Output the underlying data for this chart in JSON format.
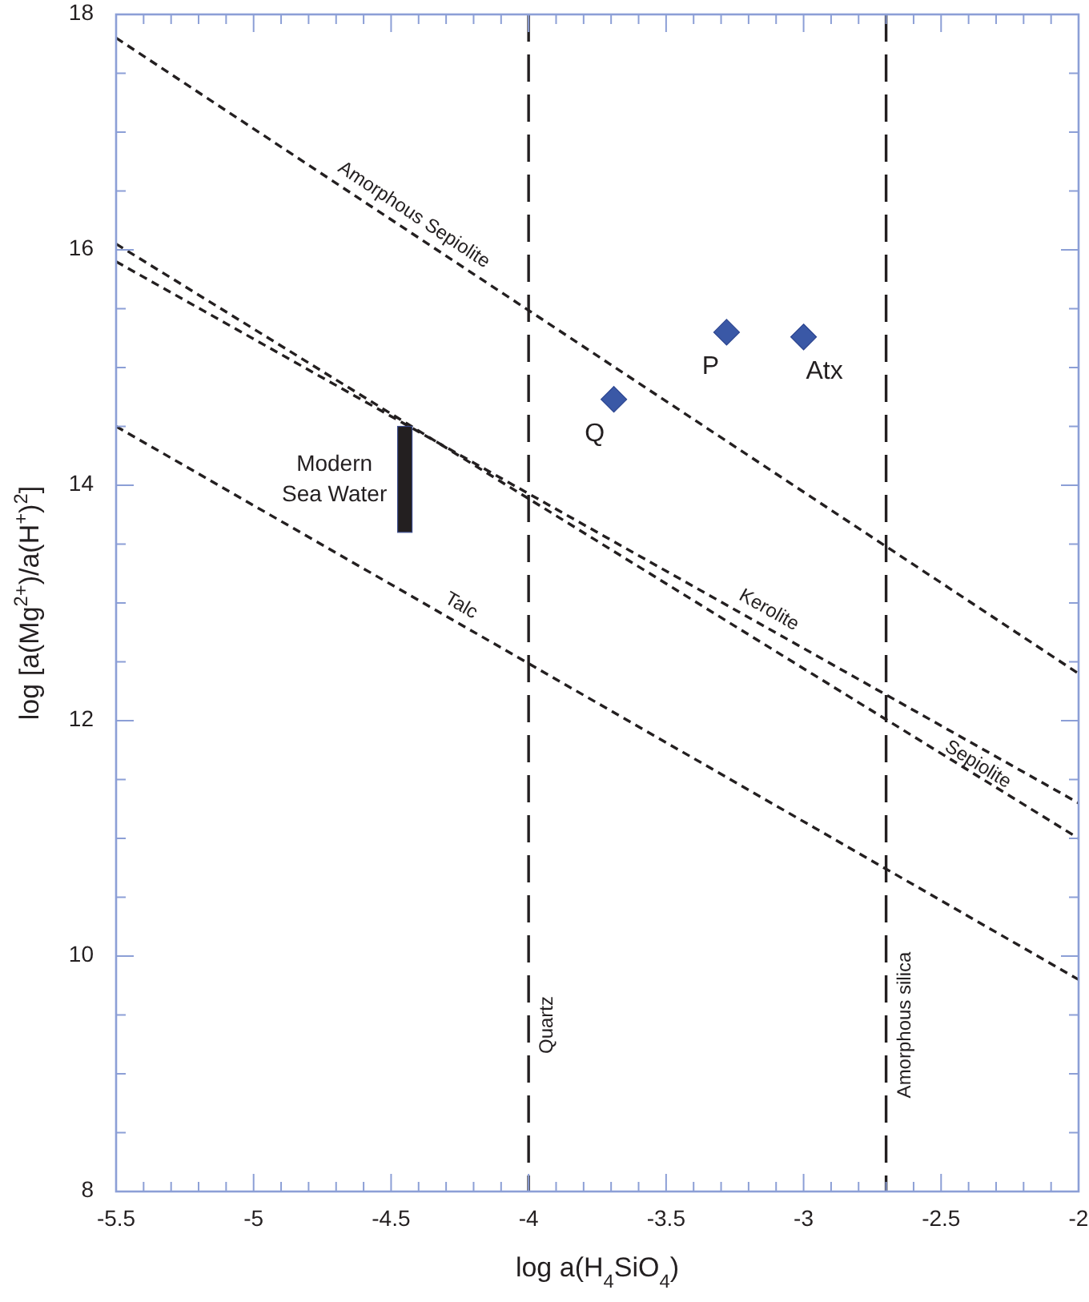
{
  "chart_data": {
    "type": "line",
    "xlabel": "log a(H$_{4}$SiO$_{4}$)",
    "ylabel": "log [a(Mg$^{2+}$)/a(H$^{+}$)$^{2}$]",
    "xlim": [
      -5.5,
      -2
    ],
    "ylim": [
      8,
      18
    ],
    "xticks": [
      -5.5,
      {
        "value": -5.4,
        "label": null
      },
      {
        "value": -5.3,
        "label": null
      },
      {
        "value": -5.2,
        "label": null
      },
      {
        "value": -5.1,
        "label": null
      },
      -5,
      {
        "value": -4.9,
        "label": null
      },
      {
        "value": -4.8,
        "label": null
      },
      {
        "value": -4.7,
        "label": null
      },
      {
        "value": -4.6,
        "label": null
      },
      -4.5,
      {
        "value": -4.4,
        "label": null
      },
      {
        "value": -4.3,
        "label": null
      },
      {
        "value": -4.2,
        "label": null
      },
      {
        "value": -4.1,
        "label": null
      },
      -4,
      {
        "value": -3.9,
        "label": null
      },
      {
        "value": -3.8,
        "label": null
      },
      {
        "value": -3.7,
        "label": null
      },
      {
        "value": -3.6,
        "label": null
      },
      -3.5,
      {
        "value": -3.4,
        "label": null
      },
      {
        "value": -3.3,
        "label": null
      },
      {
        "value": -3.2,
        "label": null
      },
      {
        "value": -3.1,
        "label": null
      },
      -3,
      {
        "value": -2.9,
        "label": null
      },
      {
        "value": -2.8,
        "label": null
      },
      {
        "value": -2.7,
        "label": null
      },
      {
        "value": -2.6,
        "label": null
      },
      -2.5,
      {
        "value": -2.4,
        "label": null
      },
      {
        "value": -2.3,
        "label": null
      },
      {
        "value": -2.2,
        "label": null
      },
      {
        "value": -2.1,
        "label": null
      },
      -2
    ],
    "yticks": [
      8,
      {
        "value": 8.5,
        "label": null
      },
      {
        "value": 9,
        "label": null
      },
      {
        "value": 9.5,
        "label": null
      },
      10,
      {
        "value": 10.5,
        "label": null
      },
      {
        "value": 11,
        "label": null
      },
      {
        "value": 11.5,
        "label": null
      },
      12,
      {
        "value": 12.5,
        "label": null
      },
      {
        "value": 13,
        "label": null
      },
      {
        "value": 13.5,
        "label": null
      },
      14,
      {
        "value": 14.5,
        "label": null
      },
      {
        "value": 15,
        "label": null
      },
      {
        "value": 15.5,
        "label": null
      },
      16,
      {
        "value": 16.5,
        "label": null
      },
      {
        "value": 17,
        "label": null
      },
      {
        "value": 17.5,
        "label": null
      },
      18
    ],
    "series": [
      {
        "name": "Amorphous Sepiolite",
        "color": "#231f20",
        "line_style": "dashed",
        "x": [
          -5.5,
          -2
        ],
        "values": [
          17.8,
          12.4
        ]
      },
      {
        "name": "Sepiolite",
        "color": "#231f20",
        "line_style": "dashed",
        "x": [
          -5.5,
          -2
        ],
        "values": [
          16.05,
          11.0
        ]
      },
      {
        "name": "Kerolite",
        "color": "#231f20",
        "line_style": "dashed",
        "x": [
          -5.5,
          -2
        ],
        "values": [
          15.9,
          11.3
        ]
      },
      {
        "name": "Talc",
        "color": "#231f20",
        "line_style": "dashed",
        "x": [
          -5.5,
          -2
        ],
        "values": [
          14.5,
          9.8
        ]
      },
      {
        "name": "Modern Sea Water",
        "type": "bar",
        "color": "#231f20",
        "x": [
          -4.45
        ],
        "base": [
          13.6
        ],
        "values": [
          0.9
        ]
      },
      {
        "type": "scatter",
        "color": "#3a58a6",
        "marker": "diamond",
        "x": [
          -3.69,
          -3.28,
          -3.0
        ],
        "values": [
          14.73,
          15.3,
          15.26
        ]
      }
    ],
    "ref_lines": [
      {
        "axis": "x",
        "value": -4,
        "label": "Quartz",
        "color": "#231f20",
        "line_style": "dashed"
      },
      {
        "axis": "x",
        "value": -2.7,
        "label": "Amorphous silica",
        "color": "#231f20",
        "line_style": "dashed"
      }
    ],
    "annotations": [
      {
        "text": "Q",
        "x": -3.69,
        "y": 14.73
      },
      {
        "text": "P",
        "x": -3.28,
        "y": 15.3
      },
      {
        "text": "Atx",
        "x": -3.0,
        "y": 15.26
      }
    ]
  }
}
